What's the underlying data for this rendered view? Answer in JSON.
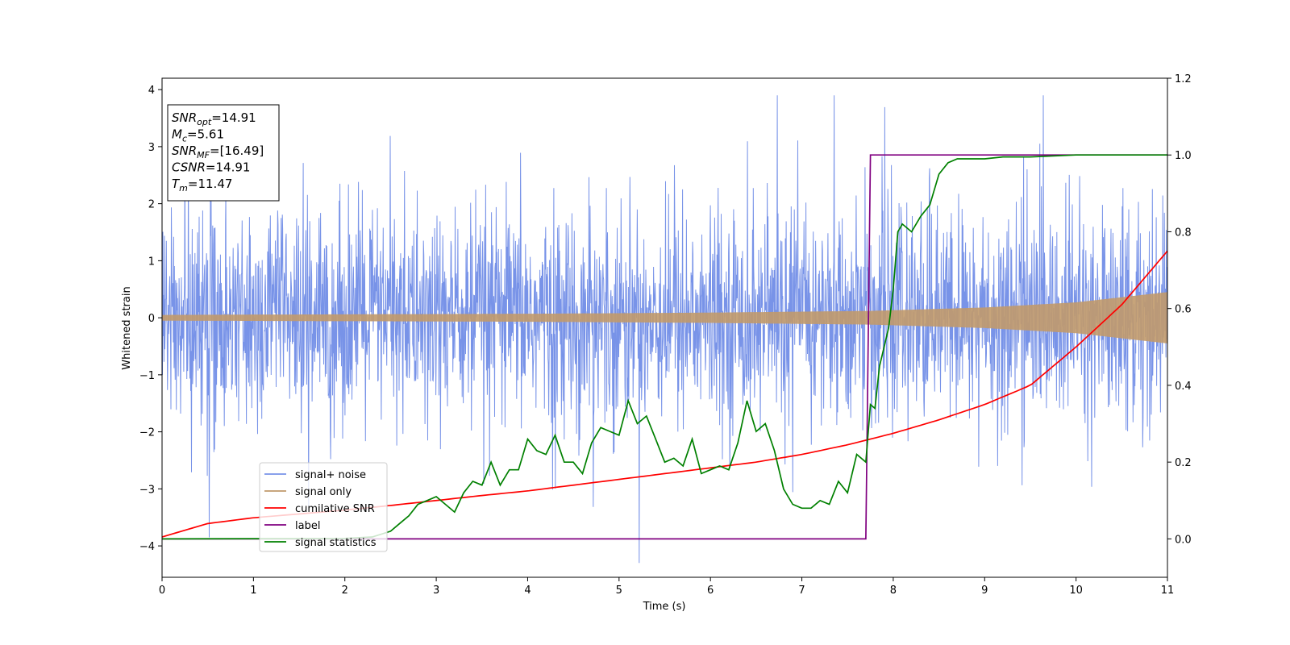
{
  "chart_data": {
    "type": "line",
    "xlabel": "Time (s)",
    "ylabel": "Whitened strain",
    "xlim": [
      0,
      11
    ],
    "ylim": [
      -4.55,
      4.2
    ],
    "y2lim": [
      -0.1,
      1.2
    ],
    "xticks": [
      "0",
      "1",
      "2",
      "3",
      "4",
      "5",
      "6",
      "7",
      "8",
      "9",
      "10",
      "11"
    ],
    "yticks": [
      "4",
      "3",
      "2",
      "1",
      "0",
      "−1",
      "−2",
      "−3",
      "−4"
    ],
    "y2ticks": [
      "1.2",
      "1.0",
      "0.8",
      "0.6",
      "0.4",
      "0.2",
      "0.0"
    ],
    "grid": false,
    "legend_position": "lower-left",
    "info_box": {
      "lines": [
        {
          "sym": "SNR",
          "sub": "opt",
          "val": "=14.91"
        },
        {
          "sym": "M",
          "sub": "c",
          "val": "=5.61"
        },
        {
          "sym": "SNR",
          "sub": "MF",
          "val": "=[16.49]"
        },
        {
          "sym": "CSNR",
          "sub": "",
          "val": "=14.91"
        },
        {
          "sym": "T",
          "sub": "m",
          "val": "=11.47"
        }
      ]
    },
    "series": [
      {
        "name": "signal+ noise",
        "color": "#7893e8",
        "axis": "left",
        "description_values": {
          "noise_sigma": 0.9,
          "peak_amplitude": 3.8
        }
      },
      {
        "name": "signal only",
        "color": "#c19a6b",
        "axis": "left",
        "envelope": {
          "t": [
            0,
            2,
            4,
            6,
            7.75,
            9,
            10,
            11
          ],
          "amp": [
            0.05,
            0.06,
            0.07,
            0.09,
            0.12,
            0.18,
            0.27,
            0.45
          ]
        }
      },
      {
        "name": "cumilative SNR",
        "color": "#ff0000",
        "axis": "right",
        "x": [
          0,
          0.5,
          1,
          1.5,
          2,
          2.5,
          3,
          3.5,
          4,
          4.5,
          5,
          5.5,
          6,
          6.5,
          7,
          7.5,
          8,
          8.5,
          9,
          9.5,
          10,
          10.5,
          11
        ],
        "y": [
          0.005,
          0.04,
          0.055,
          0.065,
          0.075,
          0.087,
          0.1,
          0.113,
          0.125,
          0.14,
          0.155,
          0.17,
          0.185,
          0.2,
          0.22,
          0.245,
          0.275,
          0.31,
          0.35,
          0.4,
          0.5,
          0.61,
          0.75
        ]
      },
      {
        "name": "label",
        "color": "#800080",
        "axis": "right",
        "x": [
          0,
          7.7,
          7.75,
          11
        ],
        "y": [
          0,
          0,
          1,
          1
        ]
      },
      {
        "name": "signal statistics",
        "color": "#008000",
        "axis": "right",
        "x": [
          0,
          2.0,
          2.3,
          2.5,
          2.6,
          2.7,
          2.8,
          2.9,
          3.0,
          3.1,
          3.2,
          3.3,
          3.4,
          3.5,
          3.6,
          3.7,
          3.8,
          3.9,
          4.0,
          4.1,
          4.2,
          4.3,
          4.4,
          4.5,
          4.6,
          4.7,
          4.8,
          4.9,
          5.0,
          5.1,
          5.2,
          5.3,
          5.4,
          5.5,
          5.6,
          5.7,
          5.8,
          5.9,
          6.0,
          6.1,
          6.2,
          6.3,
          6.4,
          6.5,
          6.6,
          6.7,
          6.8,
          6.9,
          7.0,
          7.1,
          7.2,
          7.3,
          7.4,
          7.5,
          7.6,
          7.7,
          7.75,
          7.8,
          7.85,
          7.9,
          7.95,
          8.0,
          8.05,
          8.1,
          8.2,
          8.3,
          8.4,
          8.5,
          8.6,
          8.7,
          8.8,
          9.0,
          9.2,
          9.5,
          10.0,
          10.5,
          11.0
        ],
        "y": [
          0,
          0.001,
          0.005,
          0.02,
          0.04,
          0.06,
          0.09,
          0.1,
          0.11,
          0.09,
          0.07,
          0.12,
          0.15,
          0.14,
          0.2,
          0.14,
          0.18,
          0.18,
          0.26,
          0.23,
          0.22,
          0.27,
          0.2,
          0.2,
          0.17,
          0.25,
          0.29,
          0.28,
          0.27,
          0.36,
          0.3,
          0.32,
          0.26,
          0.2,
          0.21,
          0.19,
          0.26,
          0.17,
          0.18,
          0.19,
          0.18,
          0.25,
          0.36,
          0.28,
          0.3,
          0.23,
          0.13,
          0.09,
          0.08,
          0.08,
          0.1,
          0.09,
          0.15,
          0.12,
          0.22,
          0.2,
          0.35,
          0.34,
          0.45,
          0.5,
          0.55,
          0.65,
          0.8,
          0.82,
          0.8,
          0.84,
          0.87,
          0.95,
          0.98,
          0.99,
          0.99,
          0.99,
          0.995,
          0.995,
          1.0,
          1.0,
          1.0
        ]
      }
    ]
  }
}
